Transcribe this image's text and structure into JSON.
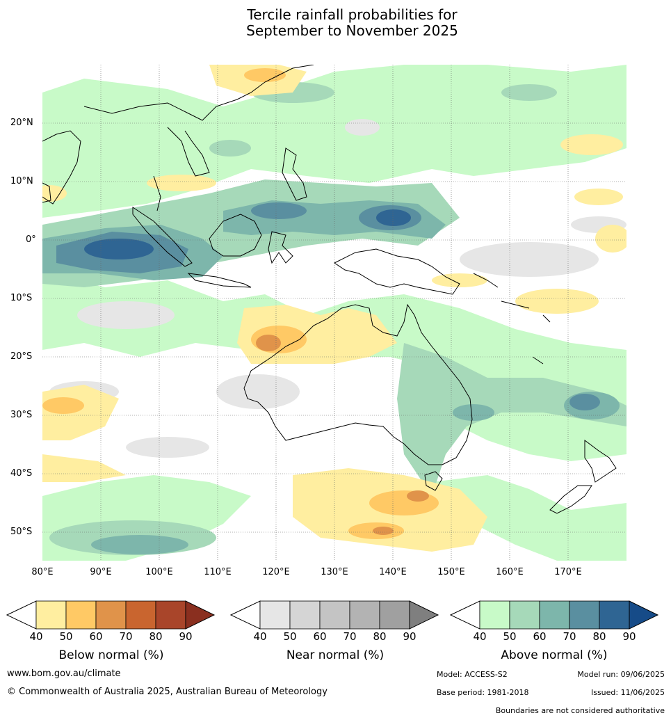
{
  "title_line1": "Tercile rainfall probabilities for",
  "title_line2": "September to November 2025",
  "map": {
    "lat_labels": [
      "20°N",
      "10°N",
      "0°",
      "10°S",
      "20°S",
      "30°S",
      "40°S",
      "50°S"
    ],
    "lon_labels": [
      "80°E",
      "90°E",
      "100°E",
      "110°E",
      "120°E",
      "130°E",
      "140°E",
      "150°E",
      "160°E",
      "170°E"
    ]
  },
  "colorbars": [
    {
      "name": "below",
      "title": "Below normal (%)",
      "ticks": [
        "40",
        "50",
        "60",
        "70",
        "80",
        "90"
      ],
      "colors": [
        "#ffeea0",
        "#ffc965",
        "#e0934a",
        "#c9652f",
        "#a9452a",
        "#8a2f1f"
      ]
    },
    {
      "name": "near",
      "title": "Near normal (%)",
      "ticks": [
        "40",
        "50",
        "60",
        "70",
        "80",
        "90"
      ],
      "colors": [
        "#e6e6e6",
        "#d5d5d5",
        "#c4c4c4",
        "#b3b3b3",
        "#a0a0a0",
        "#7f7f7f"
      ]
    },
    {
      "name": "above",
      "title": "Above normal (%)",
      "ticks": [
        "40",
        "50",
        "60",
        "70",
        "80",
        "90"
      ],
      "colors": [
        "#c8fac8",
        "#a6d9b9",
        "#7db6ab",
        "#5a8fa0",
        "#2f6593",
        "#164b88"
      ]
    }
  ],
  "footer": {
    "website": "www.bom.gov.au/climate",
    "copyright": "© Commonwealth of Australia 2025, Australian Bureau of Meteorology",
    "model": "Model: ACCESS-S2",
    "model_run": "Model run: 09/06/2025",
    "base_period": "Base period: 1981-2018",
    "issued": "Issued: 11/06/2025",
    "disclaimer": "Boundaries are not considered authoritative"
  }
}
